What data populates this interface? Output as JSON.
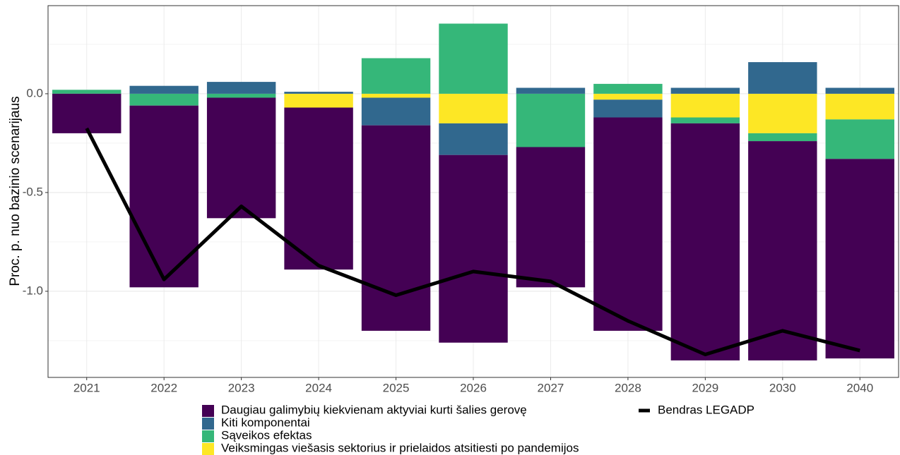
{
  "chart_data": {
    "type": "bar",
    "y_label": "Proc. p. nuo bazinio scenarijaus",
    "categories": [
      "2021",
      "2022",
      "2023",
      "2024",
      "2025",
      "2026",
      "2027",
      "2028",
      "2029",
      "2030",
      "2040"
    ],
    "series": [
      {
        "name": "Daugiau galimybių kiekvienam aktyviai kurti šalies gerovę",
        "color": "#440154",
        "values": [
          -0.2,
          -0.92,
          -0.61,
          -0.82,
          -1.04,
          -0.95,
          -0.71,
          -1.08,
          -1.2,
          -1.11,
          -1.01
        ]
      },
      {
        "name": "Kiti komponentai",
        "color": "#31688e",
        "values": [
          0,
          0.04,
          0.06,
          0.01,
          -0.14,
          -0.16,
          0.03,
          -0.09,
          0.03,
          0.16,
          0.03
        ]
      },
      {
        "name": "Sąveikos efektas",
        "color": "#35b779",
        "values": [
          0.02,
          -0.06,
          -0.02,
          0,
          0.18,
          0.355,
          -0.27,
          0.05,
          -0.03,
          -0.04,
          -0.2
        ]
      },
      {
        "name": "Veiksmingas viešasis sektorius ir prielaidos atsitiesti po pandemijos",
        "color": "#fde725",
        "values": [
          0,
          0,
          0,
          -0.07,
          -0.02,
          -0.15,
          0,
          -0.03,
          -0.12,
          -0.2,
          -0.13
        ]
      }
    ],
    "line_series": {
      "name": "Bendras LEGADP",
      "color": "#000000",
      "values": [
        -0.175,
        -0.94,
        -0.57,
        -0.87,
        -1.02,
        -0.9,
        -0.95,
        -1.15,
        -1.32,
        -1.2,
        -1.3
      ]
    },
    "ylim": [
      -1.436,
      0.446
    ],
    "yticks": [
      {
        "value": 0,
        "label": "0.0"
      },
      -0.5,
      {
        "value": -1,
        "label": "-1.0"
      }
    ],
    "y_minor_ticks": [
      0.25,
      -0.25,
      -0.75,
      -1.25
    ],
    "grid": true,
    "legend": "bottom"
  }
}
